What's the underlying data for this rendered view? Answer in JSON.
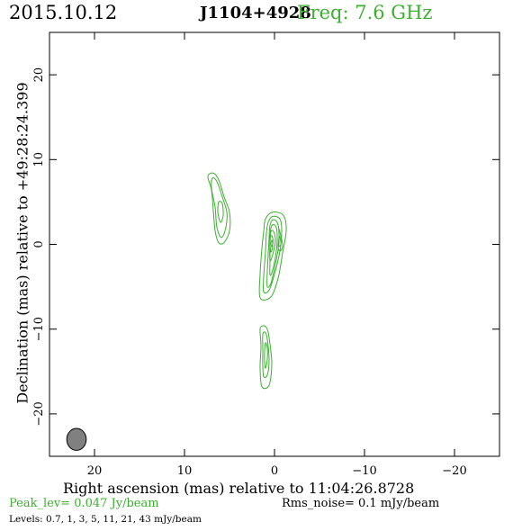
{
  "header": {
    "date": "2015.10.12",
    "source": "J1104+4928",
    "freq": "Freq: 7.6 GHz"
  },
  "colors": {
    "contour": "#3cb030",
    "beam": "#808080",
    "frame": "#000000"
  },
  "footer": {
    "peak": "Peak_lev=  0.047 Jy/beam",
    "rms": "Rms_noise=  0.1 mJy/beam",
    "levels": "Levels: 0.7,   1,   3,   5,  11,  21,  43 mJy/beam"
  },
  "chart_data": {
    "type": "contour",
    "xlabel": "Right ascension (mas) relative to 11:04:26.8728",
    "ylabel": "Declination (mas) relative to +49:28:24.399",
    "xlim": [
      25,
      -25
    ],
    "ylim": [
      -25,
      25
    ],
    "xticks": [
      20,
      10,
      0,
      -10,
      -20
    ],
    "xtick_labels": [
      "20",
      "10",
      "0",
      "−10",
      "−20"
    ],
    "yticks": [
      20,
      10,
      0,
      -10,
      -20
    ],
    "ytick_labels": [
      "20",
      "10",
      "0",
      "−10",
      "−20"
    ],
    "levels_mJy": [
      0.7,
      1,
      3,
      5,
      11,
      21,
      43
    ],
    "contours": [
      {
        "component": "core",
        "level": 0.7,
        "polygon": [
          [
            1.6,
            -6.3
          ],
          [
            0.4,
            -6.2
          ],
          [
            -0.4,
            -4.0
          ],
          [
            -0.9,
            -1.0
          ],
          [
            -1.3,
            1.6
          ],
          [
            -1.0,
            3.4
          ],
          [
            0.2,
            3.8
          ],
          [
            1.0,
            3.0
          ],
          [
            1.2,
            1.5
          ],
          [
            1.4,
            -0.5
          ],
          [
            1.6,
            -3.5
          ]
        ]
      },
      {
        "component": "core",
        "level": 1,
        "polygon": [
          [
            1.2,
            -5.6
          ],
          [
            0.6,
            -5.4
          ],
          [
            0.0,
            -3.5
          ],
          [
            -0.6,
            -0.8
          ],
          [
            -0.8,
            1.6
          ],
          [
            -0.6,
            3.0
          ],
          [
            0.2,
            3.3
          ],
          [
            0.7,
            2.6
          ],
          [
            0.9,
            1.3
          ],
          [
            1.0,
            -0.8
          ],
          [
            1.2,
            -3.8
          ]
        ]
      },
      {
        "component": "core",
        "level": 3,
        "polygon": [
          [
            0.8,
            -5.0
          ],
          [
            0.4,
            -4.6
          ],
          [
            0.0,
            -2.8
          ],
          [
            -0.4,
            -0.6
          ],
          [
            -0.5,
            1.4
          ],
          [
            -0.3,
            2.6
          ],
          [
            0.2,
            2.9
          ],
          [
            0.5,
            2.2
          ],
          [
            0.6,
            0.8
          ],
          [
            0.7,
            -1.2
          ],
          [
            0.8,
            -3.2
          ]
        ]
      },
      {
        "component": "core",
        "level": 5,
        "polygon": [
          [
            0.5,
            -3.6
          ],
          [
            0.2,
            -3.0
          ],
          [
            -0.2,
            -0.8
          ],
          [
            -0.3,
            1.2
          ],
          [
            -0.1,
            2.2
          ],
          [
            0.3,
            2.2
          ],
          [
            0.5,
            1.0
          ],
          [
            0.5,
            -1.6
          ]
        ]
      },
      {
        "component": "core",
        "level": 11,
        "polygon": [
          [
            0.5,
            -1.9
          ],
          [
            0.2,
            -1.2
          ],
          [
            -0.1,
            0.4
          ],
          [
            0.1,
            1.5
          ],
          [
            0.4,
            1.5
          ],
          [
            0.5,
            0.2
          ]
        ]
      },
      {
        "component": "core",
        "level": 21,
        "polygon": [
          [
            0.4,
            -0.9
          ],
          [
            0.2,
            -0.2
          ],
          [
            0.2,
            0.8
          ],
          [
            0.4,
            1.0
          ],
          [
            0.5,
            0.2
          ]
        ]
      },
      {
        "component": "core",
        "level": 43,
        "polygon": [
          [
            0.3,
            -0.3
          ],
          [
            0.2,
            0.1
          ],
          [
            0.3,
            0.5
          ],
          [
            0.4,
            0.1
          ]
        ]
      },
      {
        "component": "east",
        "level": 0.7,
        "polygon": [
          [
            -0.9,
            -0.2
          ],
          [
            -0.7,
            1.0
          ],
          [
            -0.5,
            1.8
          ],
          [
            -0.5,
            0.8
          ],
          [
            -0.4,
            -0.3
          ],
          [
            -0.6,
            -0.8
          ]
        ]
      },
      {
        "component": "east",
        "level": 1,
        "polygon": [
          [
            -0.7,
            0.0
          ],
          [
            -0.6,
            0.9
          ],
          [
            -0.5,
            0.6
          ],
          [
            -0.5,
            -0.2
          ]
        ]
      },
      {
        "component": "ne_knot",
        "level": 0.7,
        "polygon": [
          [
            5.6,
            0.2
          ],
          [
            5.0,
            1.6
          ],
          [
            5.0,
            3.8
          ],
          [
            5.6,
            5.6
          ],
          [
            6.2,
            7.6
          ],
          [
            6.8,
            8.4
          ],
          [
            7.4,
            8.0
          ],
          [
            7.0,
            6.4
          ],
          [
            6.8,
            4.0
          ],
          [
            6.6,
            1.6
          ],
          [
            6.2,
            0.2
          ]
        ]
      },
      {
        "component": "ne_knot",
        "level": 1,
        "polygon": [
          [
            5.9,
            0.8
          ],
          [
            5.4,
            2.0
          ],
          [
            5.3,
            3.8
          ],
          [
            5.8,
            5.6
          ],
          [
            6.4,
            7.4
          ],
          [
            6.9,
            7.8
          ],
          [
            7.0,
            6.6
          ],
          [
            6.6,
            4.4
          ],
          [
            6.4,
            2.0
          ]
        ]
      },
      {
        "component": "ne_knot",
        "level": 3,
        "polygon": [
          [
            6.0,
            2.6
          ],
          [
            5.7,
            3.4
          ],
          [
            5.8,
            4.8
          ],
          [
            6.2,
            5.0
          ],
          [
            6.3,
            3.8
          ]
        ]
      },
      {
        "component": "sw_knot",
        "level": 0.7,
        "polygon": [
          [
            1.4,
            -16.8
          ],
          [
            0.6,
            -16.6
          ],
          [
            0.3,
            -14.0
          ],
          [
            0.6,
            -11.0
          ],
          [
            0.8,
            -10.0
          ],
          [
            1.2,
            -9.6
          ],
          [
            1.6,
            -10.0
          ],
          [
            1.5,
            -12.0
          ],
          [
            1.6,
            -14.6
          ]
        ]
      },
      {
        "component": "sw_knot",
        "level": 1,
        "polygon": [
          [
            1.2,
            -15.6
          ],
          [
            0.8,
            -15.4
          ],
          [
            0.6,
            -13.6
          ],
          [
            0.8,
            -11.2
          ],
          [
            1.0,
            -10.4
          ],
          [
            1.3,
            -10.6
          ],
          [
            1.3,
            -12.4
          ],
          [
            1.3,
            -14.4
          ]
        ]
      },
      {
        "component": "sw_knot",
        "level": 3,
        "polygon": [
          [
            1.0,
            -14.6
          ],
          [
            0.8,
            -13.6
          ],
          [
            0.8,
            -12.2
          ],
          [
            1.0,
            -11.6
          ],
          [
            1.1,
            -12.6
          ],
          [
            1.1,
            -13.8
          ]
        ]
      }
    ],
    "beam": {
      "x": 22,
      "y": -23,
      "major_mas": 2.6,
      "minor_mas": 0.9,
      "pa_deg": 0
    }
  }
}
